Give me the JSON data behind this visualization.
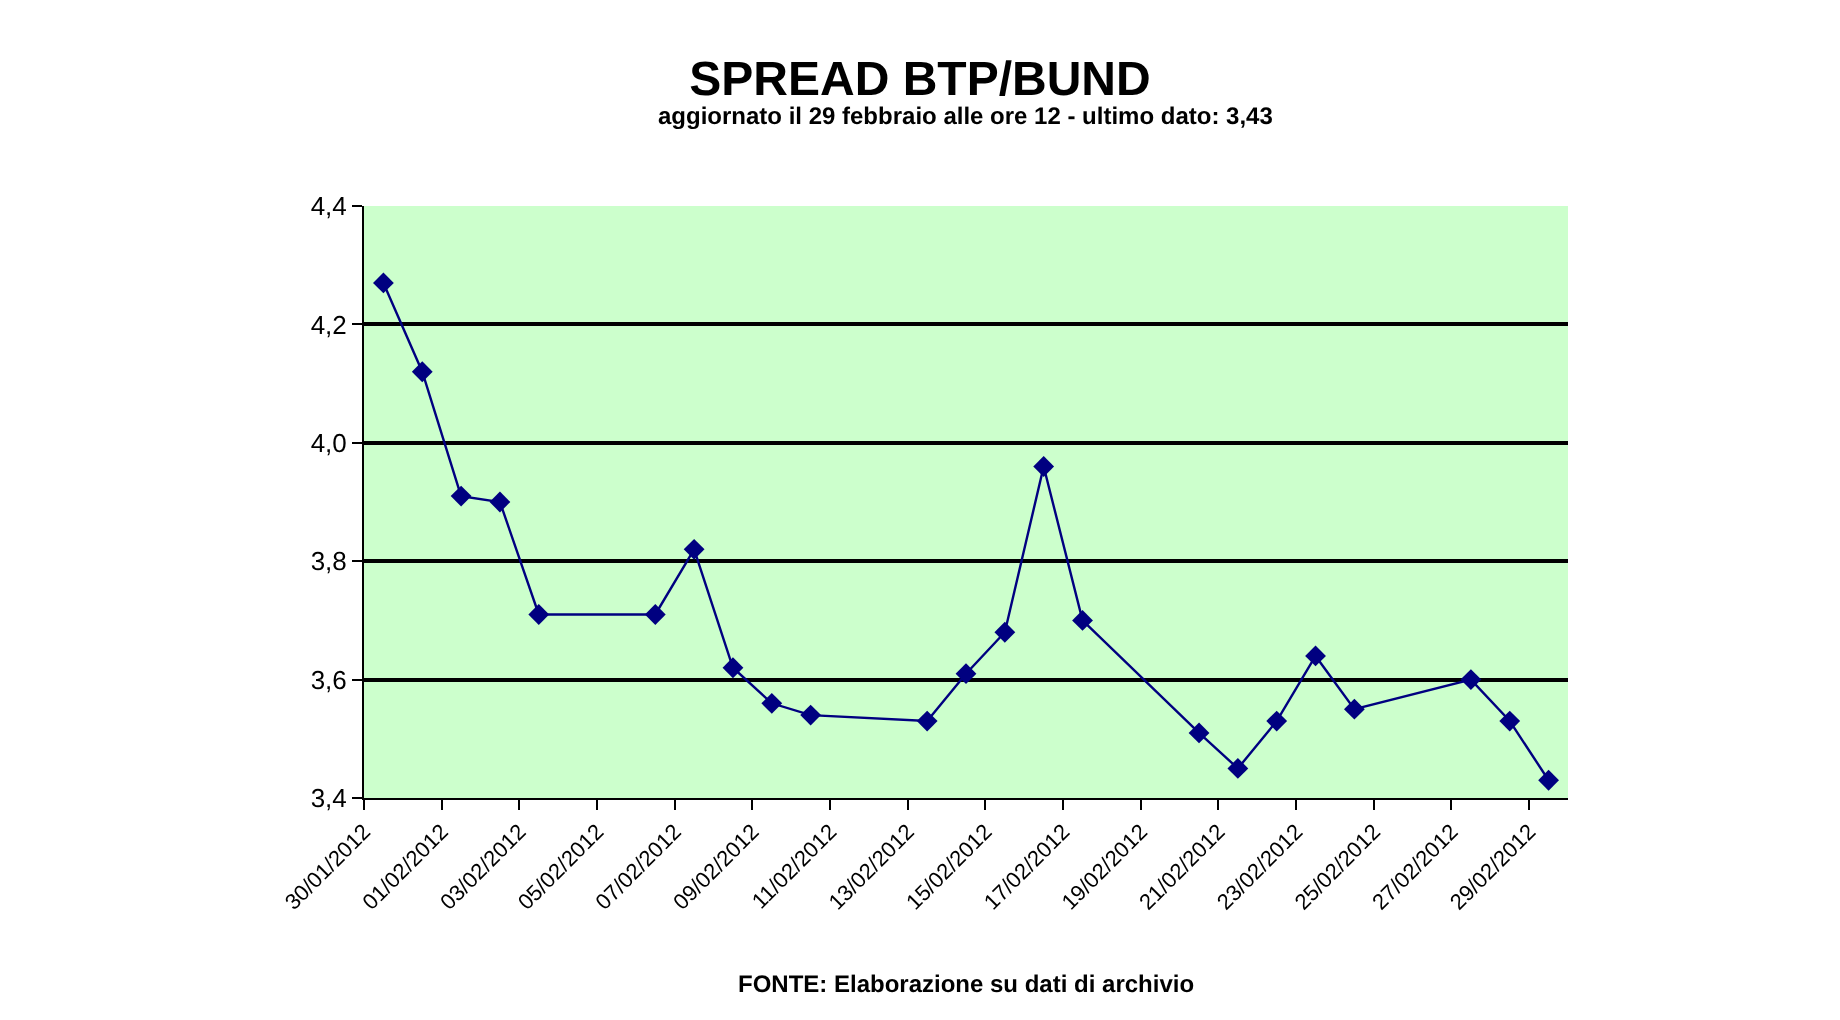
{
  "chart_data": {
    "type": "line",
    "title": "SPREAD BTP/BUND",
    "subtitle": "aggiornato il 29 febbraio alle ore 12 - ultimo dato: 3,43",
    "annotations": [
      "FONTE: Elaborazione su dati di archivio"
    ],
    "x": [
      "2012-01-30T12:00",
      "2012-01-31T12:00",
      "2012-02-01T12:00",
      "2012-02-02T12:00",
      "2012-02-03T12:00",
      "2012-02-06T12:00",
      "2012-02-07T12:00",
      "2012-02-08T12:00",
      "2012-02-09T12:00",
      "2012-02-10T12:00",
      "2012-02-13T12:00",
      "2012-02-14T12:00",
      "2012-02-15T12:00",
      "2012-02-16T12:00",
      "2012-02-17T12:00",
      "2012-02-20T12:00",
      "2012-02-21T12:00",
      "2012-02-22T12:00",
      "2012-02-23T12:00",
      "2012-02-24T12:00",
      "2012-02-27T12:00",
      "2012-02-28T12:00",
      "2012-02-29T12:00"
    ],
    "series": [
      {
        "color": "#000080",
        "values": [
          4.27,
          4.12,
          3.91,
          3.9,
          3.71,
          3.71,
          3.82,
          3.62,
          3.56,
          3.54,
          3.53,
          3.61,
          3.68,
          3.96,
          3.7,
          3.51,
          3.45,
          3.53,
          3.64,
          3.55,
          3.6,
          3.53,
          3.43
        ]
      }
    ],
    "xlim": [
      "2012-01-30",
      "2012-03-01"
    ],
    "xticks": [
      {
        "value": "2012-01-30",
        "label": "30/01/2012"
      },
      {
        "value": "2012-02-01",
        "label": "01/02/2012"
      },
      {
        "value": "2012-02-03",
        "label": "03/02/2012"
      },
      {
        "value": "2012-02-05",
        "label": "05/02/2012"
      },
      {
        "value": "2012-02-07",
        "label": "07/02/2012"
      },
      {
        "value": "2012-02-09",
        "label": "09/02/2012"
      },
      {
        "value": "2012-02-11",
        "label": "11/02/2012"
      },
      {
        "value": "2012-02-13",
        "label": "13/02/2012"
      },
      {
        "value": "2012-02-15",
        "label": "15/02/2012"
      },
      {
        "value": "2012-02-17",
        "label": "17/02/2012"
      },
      {
        "value": "2012-02-19",
        "label": "19/02/2012"
      },
      {
        "value": "2012-02-21",
        "label": "21/02/2012"
      },
      {
        "value": "2012-02-23",
        "label": "23/02/2012"
      },
      {
        "value": "2012-02-25",
        "label": "25/02/2012"
      },
      {
        "value": "2012-02-27",
        "label": "27/02/2012"
      },
      {
        "value": "2012-02-29",
        "label": "29/02/2012"
      }
    ],
    "ylim": [
      3.4,
      4.4
    ],
    "yticks": [
      {
        "value": 3.4,
        "label": "3,4"
      },
      {
        "value": 3.6,
        "label": "3,6"
      },
      {
        "value": 3.8,
        "label": "3,8"
      },
      {
        "value": 4.0,
        "label": "4,0"
      },
      {
        "value": 4.2,
        "label": "4,2"
      },
      {
        "value": 4.4,
        "label": "4,4"
      }
    ],
    "grid": "y",
    "marker": "diamond",
    "line_style": "solid"
  }
}
